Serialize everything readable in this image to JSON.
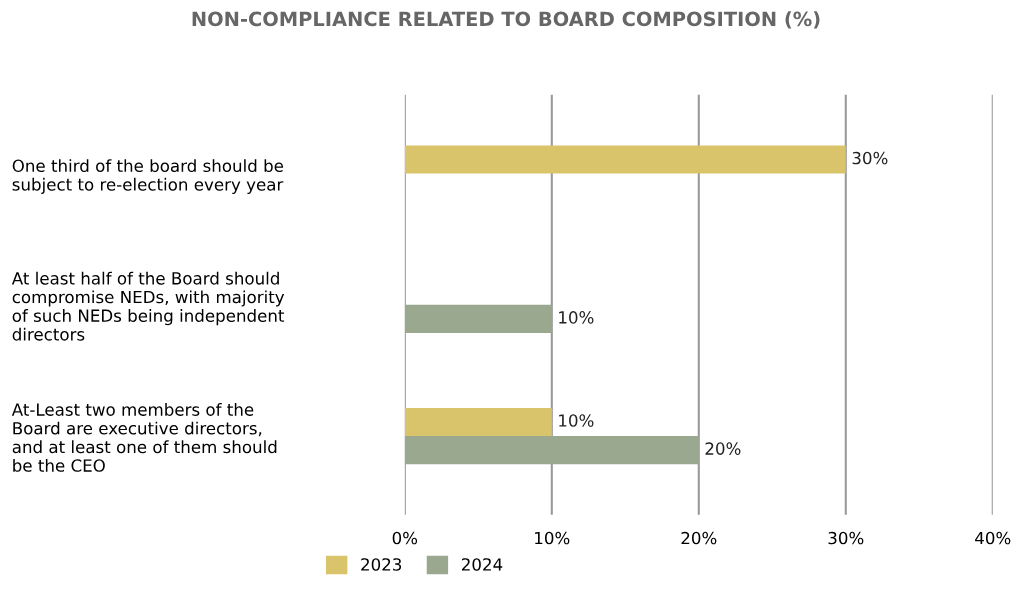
{
  "chart_data": {
    "type": "bar",
    "orientation": "horizontal",
    "title": "NON-COMPLIANCE RELATED TO BOARD COMPOSITION (%)",
    "categories": [
      "One third of the board should be\nsubject to re-election every year",
      "At least half of the Board should\ncompromise NEDs, with majority\nof such NEDs being independent\ndirectors",
      "At-Least two members of the\nBoard are executive directors,\nand at least one of them should\nbe the CEO"
    ],
    "series": [
      {
        "name": "2023",
        "color": "#d9c46c",
        "values": [
          30,
          null,
          10
        ],
        "value_labels": [
          "30%",
          null,
          "10%"
        ]
      },
      {
        "name": "2024",
        "color": "#9aa88f",
        "values": [
          null,
          10,
          20
        ],
        "value_labels": [
          null,
          "10%",
          "20%"
        ]
      }
    ],
    "xlim": [
      0,
      40
    ],
    "xticks": [
      {
        "value": 0,
        "label": "0%"
      },
      {
        "value": 10,
        "label": "10%"
      },
      {
        "value": 20,
        "label": "20%"
      },
      {
        "value": 30,
        "label": "30%"
      },
      {
        "value": 40,
        "label": "40%"
      }
    ],
    "grid": "x",
    "legend": "bottom"
  }
}
